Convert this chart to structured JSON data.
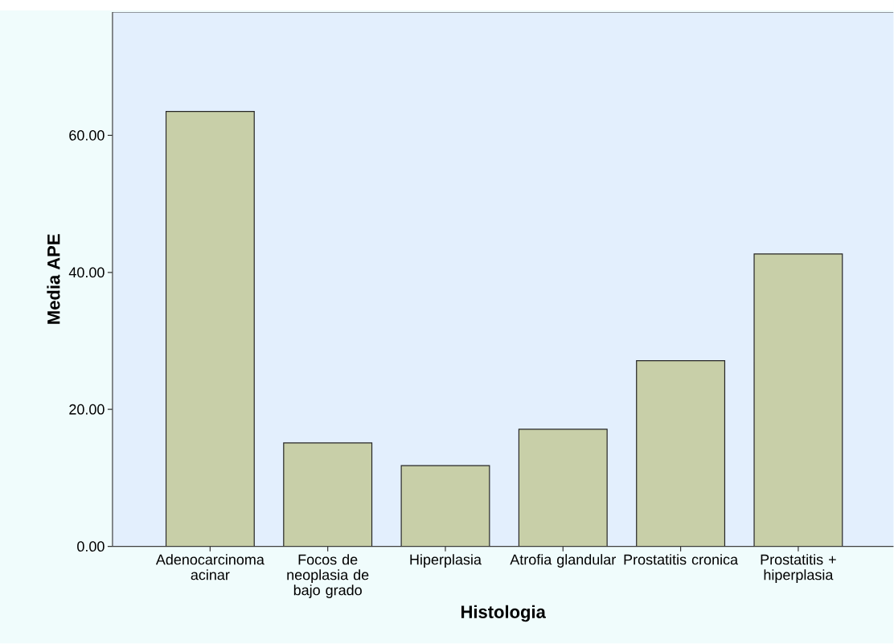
{
  "chart_data": {
    "type": "bar",
    "xlabel": "Histologia",
    "ylabel": "Media APE",
    "categories": [
      "Adenocarcinoma acinar",
      "Focos de neoplasia de bajo grado",
      "Hiperplasia",
      "Atrofia glandular",
      "Prostatitis cronica",
      "Prostatitis + hiperplasia"
    ],
    "values": [
      63.5,
      15.1,
      11.8,
      17.1,
      27.1,
      42.7
    ],
    "color": "#c8cfa8",
    "ylim": [
      0,
      78
    ],
    "yticks": [
      {
        "value": 0,
        "label": "0.00"
      },
      {
        "value": 20,
        "label": "20.00"
      },
      {
        "value": 40,
        "label": "40.00"
      },
      {
        "value": 60,
        "label": "60.00"
      }
    ],
    "grid": false
  }
}
